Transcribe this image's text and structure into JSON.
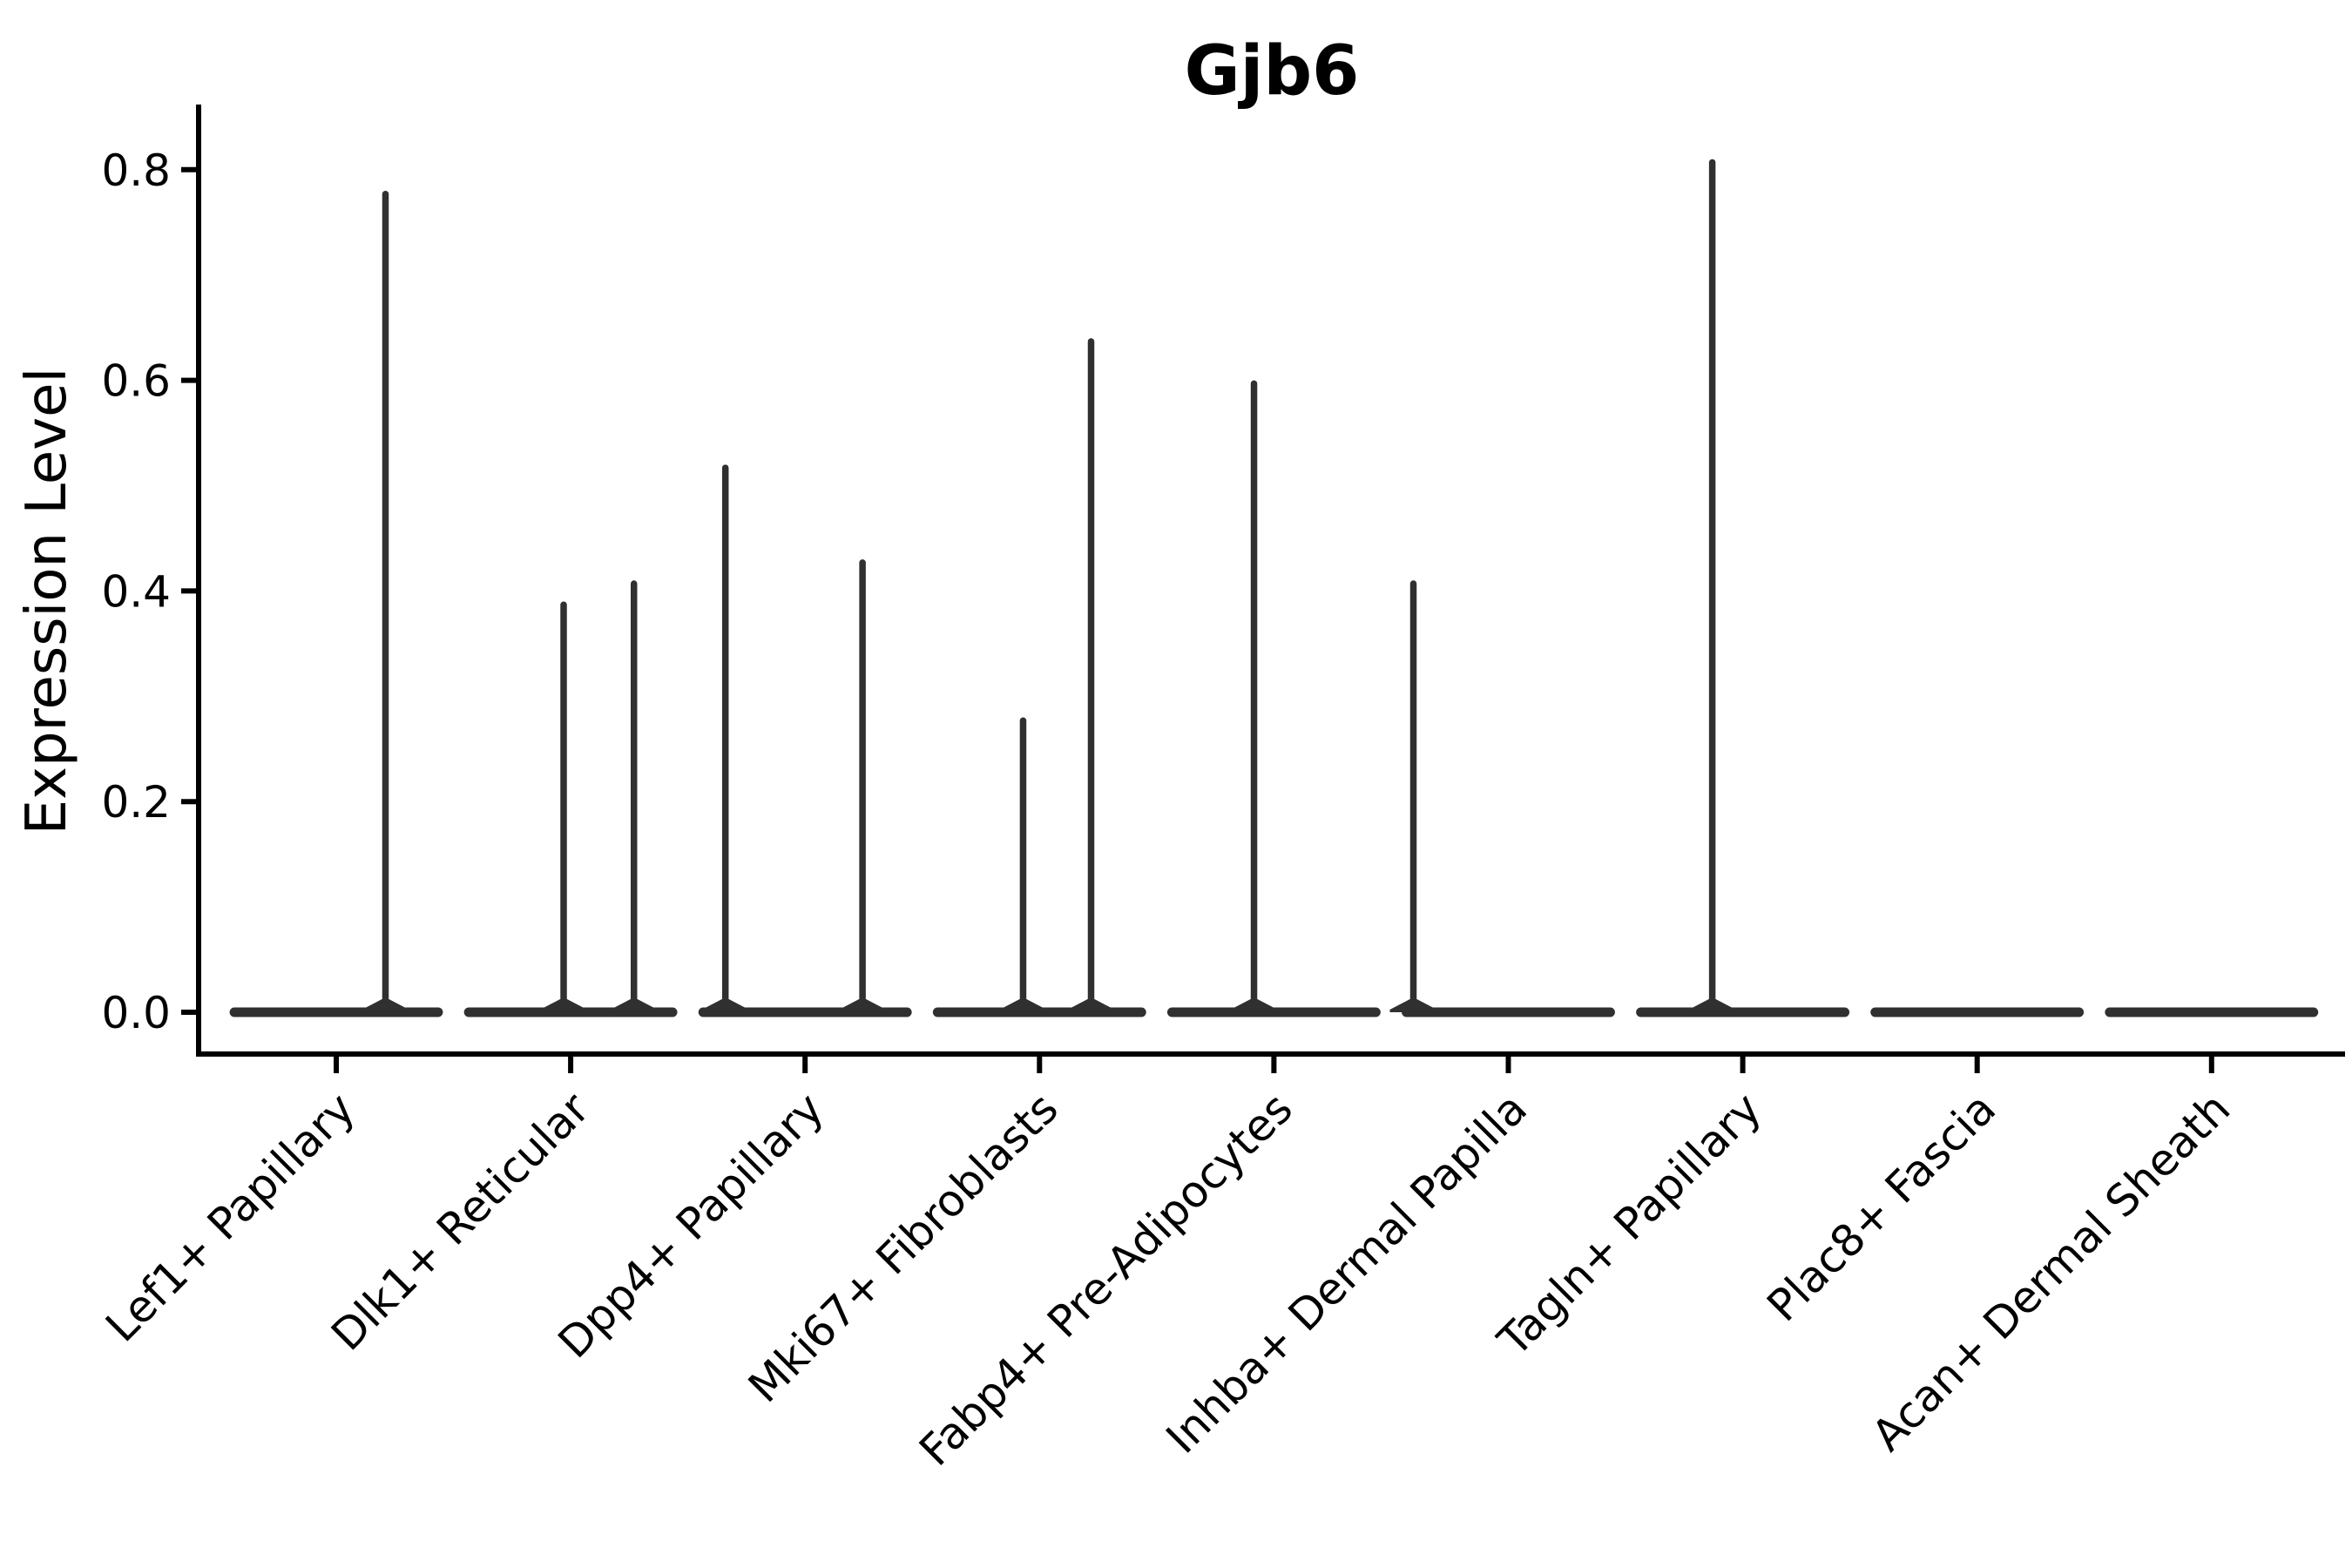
{
  "figure": {
    "title": "Gjb6"
  },
  "chart_data": {
    "type": "violin",
    "title": "Gjb6",
    "xlabel": "",
    "ylabel": "Expression Level",
    "ylim": [
      -0.04,
      0.86
    ],
    "yticks": [
      0.0,
      0.2,
      0.4,
      0.6,
      0.8
    ],
    "ytick_labels": [
      "0.0",
      "0.2",
      "0.4",
      "0.6",
      "0.8"
    ],
    "grid": false,
    "legend_position": "none",
    "background_color": "#ffffff",
    "violin_color": "#303030",
    "axis_color": "#000000",
    "x_tick_label_rotation_deg": 45,
    "categories": [
      "Lef1+ Papillary",
      "Dlk1+ Reticular",
      "Dpp4+ Papillary",
      "Mki67+ Fibroblasts",
      "Fabp4+ Pre-Adipocytes",
      "Inhba+ Dermal Papilla",
      "Tagln+ Papillary",
      "Plac8+ Fascia",
      "Acan+ Dermal Sheath"
    ],
    "series": [
      {
        "category": "Lef1+ Papillary",
        "baseline_value": 0.0,
        "baseline_halfwidth": 0.455,
        "spikes": [
          {
            "offset": 0.21,
            "value": 0.78
          }
        ]
      },
      {
        "category": "Dlk1+ Reticular",
        "baseline_value": 0.0,
        "baseline_halfwidth": 0.455,
        "spikes": [
          {
            "offset": -0.03,
            "value": 0.39
          },
          {
            "offset": 0.27,
            "value": 0.41
          }
        ]
      },
      {
        "category": "Dpp4+ Papillary",
        "baseline_value": 0.0,
        "baseline_halfwidth": 0.455,
        "spikes": [
          {
            "offset": -0.34,
            "value": 0.52
          },
          {
            "offset": 0.245,
            "value": 0.43
          }
        ]
      },
      {
        "category": "Mki67+ Fibroblasts",
        "baseline_value": 0.0,
        "baseline_halfwidth": 0.455,
        "spikes": [
          {
            "offset": -0.07,
            "value": 0.28
          },
          {
            "offset": 0.22,
            "value": 0.64
          }
        ]
      },
      {
        "category": "Fabp4+ Pre-Adipocytes",
        "baseline_value": 0.0,
        "baseline_halfwidth": 0.455,
        "spikes": [
          {
            "offset": -0.085,
            "value": 0.6
          }
        ]
      },
      {
        "category": "Inhba+ Dermal Papilla",
        "baseline_value": 0.0,
        "baseline_halfwidth": 0.455,
        "spikes": [
          {
            "offset": -0.405,
            "value": 0.41
          }
        ]
      },
      {
        "category": "Tagln+ Papillary",
        "baseline_value": 0.0,
        "baseline_halfwidth": 0.455,
        "spikes": [
          {
            "offset": -0.13,
            "value": 0.81
          }
        ]
      },
      {
        "category": "Plac8+ Fascia",
        "baseline_value": 0.0,
        "baseline_halfwidth": 0.455,
        "spikes": []
      },
      {
        "category": "Acan+ Dermal Sheath",
        "baseline_value": 0.0,
        "baseline_halfwidth": 0.455,
        "spikes": []
      }
    ]
  }
}
